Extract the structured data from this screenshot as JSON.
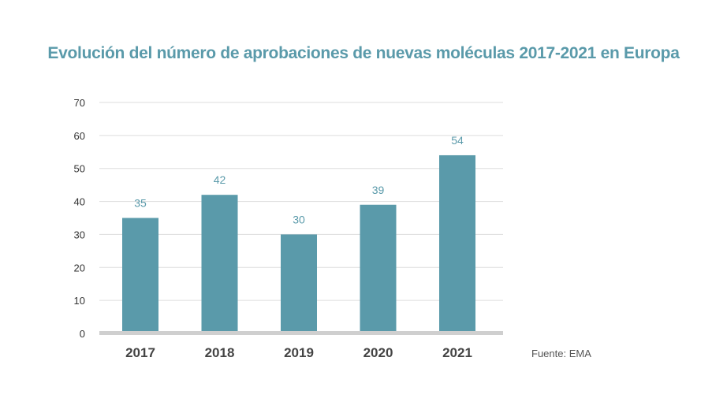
{
  "colors": {
    "title": "#5a9aaa",
    "bar": "#5a9aaa",
    "data_label": "#5a9aaa",
    "grid": "#dddddd",
    "baseline": "#cfcfcf"
  },
  "source": "Fuente: EMA",
  "chart_data": {
    "type": "bar",
    "title": "Evolución del número de aprobaciones de nuevas moléculas 2017-2021 en Europa",
    "xlabel": "",
    "ylabel": "",
    "categories": [
      "2017",
      "2018",
      "2019",
      "2020",
      "2021"
    ],
    "values": [
      35,
      42,
      30,
      39,
      54
    ],
    "data_labels": [
      "35",
      "42",
      "30",
      "39",
      "54"
    ],
    "ylim": [
      0,
      70
    ],
    "yticks": [
      0,
      10,
      20,
      30,
      40,
      50,
      60,
      70
    ],
    "grid": true,
    "legend": "none"
  }
}
